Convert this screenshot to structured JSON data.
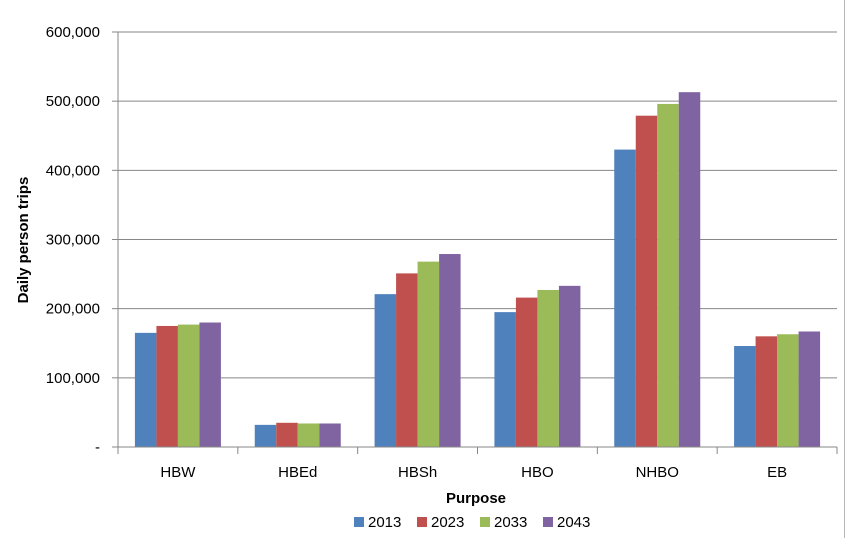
{
  "chart_data": {
    "type": "bar",
    "xlabel": "Purpose",
    "ylabel": "Daily person trips",
    "ylim": [
      0,
      600000
    ],
    "yticks": [
      0,
      100000,
      200000,
      300000,
      400000,
      500000,
      600000
    ],
    "ytick_labels": [
      "-",
      "100,000",
      "200,000",
      "300,000",
      "400,000",
      "500,000",
      "600,000"
    ],
    "categories": [
      "HBW",
      "HBEd",
      "HBSh",
      "HBO",
      "NHBO",
      "EB"
    ],
    "grid": "horizontal major gridlines",
    "legend_position": "bottom",
    "series": [
      {
        "name": "2013",
        "color": "#4f81bd",
        "values": [
          165000,
          32000,
          221000,
          195000,
          430000,
          146000
        ]
      },
      {
        "name": "2023",
        "color": "#c0504d",
        "values": [
          175000,
          35000,
          251000,
          216000,
          479000,
          160000
        ]
      },
      {
        "name": "2033",
        "color": "#9bbb59",
        "values": [
          177000,
          34000,
          268000,
          227000,
          496000,
          163000
        ]
      },
      {
        "name": "2043",
        "color": "#8064a2",
        "values": [
          180000,
          34000,
          279000,
          233000,
          513000,
          167000
        ]
      }
    ]
  }
}
